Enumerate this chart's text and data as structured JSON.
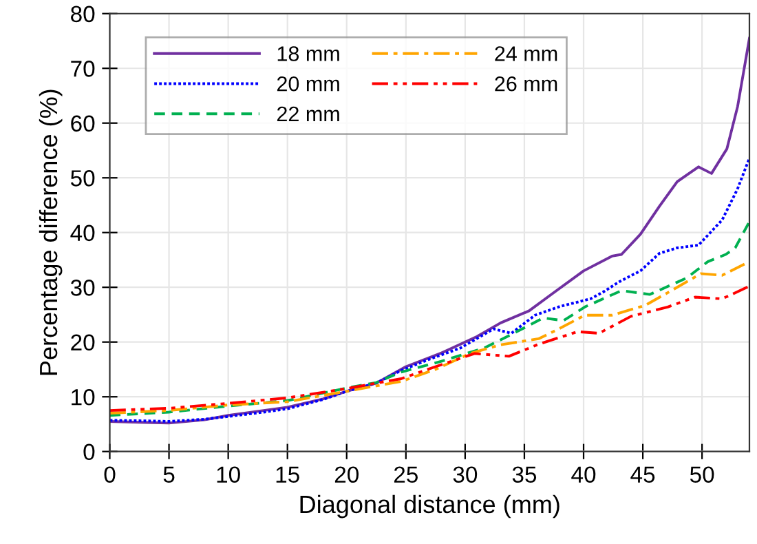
{
  "chart_data": {
    "type": "line",
    "xlabel": "Diagonal distance (mm)",
    "ylabel": "Percentage difference (%)",
    "xlim": [
      0,
      54
    ],
    "ylim": [
      0,
      80
    ],
    "xticks": [
      0,
      5,
      10,
      15,
      20,
      25,
      30,
      35,
      40,
      45,
      50
    ],
    "yticks": [
      0,
      10,
      20,
      30,
      40,
      50,
      60,
      70,
      80
    ],
    "grid": true,
    "legend": "top left",
    "series": [
      {
        "name": "18 mm",
        "color": "#7030a0",
        "line_style": "solid",
        "x": [
          0,
          3,
          5,
          8,
          10,
          13,
          15,
          18,
          20,
          22.5,
          25,
          28,
          31,
          33,
          35.4,
          37.4,
          40,
          42.4,
          43.2,
          44.8,
          46.4,
          47.9,
          49.7,
          50.8,
          52.1,
          53,
          54
        ],
        "values": [
          5.5,
          5.3,
          5.2,
          5.8,
          6.6,
          7.5,
          8.1,
          9.6,
          11,
          12.5,
          15.5,
          18,
          21,
          23.5,
          25.7,
          28.9,
          33,
          35.7,
          36,
          39.7,
          44.8,
          49.3,
          52,
          50.8,
          55.3,
          63,
          75.5
        ]
      },
      {
        "name": "20 mm",
        "color": "#0000ff",
        "line_style": "dotted",
        "x": [
          0,
          3,
          5,
          8,
          10,
          13,
          15,
          18,
          20,
          22.5,
          24.6,
          26.9,
          29.6,
          32.4,
          33.9,
          35.9,
          38,
          40.6,
          41.7,
          43,
          44.8,
          46.4,
          47.9,
          49.7,
          51.7,
          53,
          54
        ],
        "values": [
          5.7,
          5.6,
          5.5,
          5.9,
          6.4,
          7.2,
          7.8,
          9.5,
          11,
          12.5,
          14.8,
          16.8,
          18.9,
          22.4,
          21.6,
          24.9,
          26.5,
          27.9,
          29.2,
          31,
          33,
          36.2,
          37.2,
          37.7,
          42.3,
          48,
          53.6
        ]
      },
      {
        "name": "22 mm",
        "color": "#00b050",
        "line_style": "dashed",
        "x": [
          0,
          5,
          10,
          15,
          20,
          22.5,
          24.6,
          28,
          31.6,
          34,
          36.6,
          38.3,
          40.1,
          43.2,
          45.6,
          48.7,
          50.5,
          52,
          52.8,
          54
        ],
        "values": [
          6.6,
          7.2,
          8.3,
          9.3,
          11.6,
          12.6,
          14.5,
          16.5,
          18.9,
          21.5,
          24.4,
          23.9,
          26.4,
          29.4,
          28.7,
          31.7,
          34.7,
          36,
          37.2,
          42
        ]
      },
      {
        "name": "24 mm",
        "color": "#ffa500",
        "line_style": "dashdot",
        "x": [
          0,
          5,
          10,
          15,
          20,
          22.5,
          24.6,
          27.5,
          30.4,
          33,
          36.2,
          38,
          40.1,
          42.4,
          45.2,
          47.5,
          49.9,
          51.7,
          54
        ],
        "values": [
          7,
          7.5,
          8.5,
          9.1,
          11,
          12,
          12.8,
          15,
          17.9,
          19.5,
          20.6,
          22.5,
          24.9,
          24.9,
          26.7,
          29.5,
          32.5,
          32.2,
          34.7
        ]
      },
      {
        "name": "26 mm",
        "color": "#ff0000",
        "line_style": "dashdotdot",
        "x": [
          0,
          5,
          10,
          15,
          20,
          22.5,
          24.6,
          27.5,
          30.8,
          33.7,
          36.2,
          39.5,
          41.3,
          44,
          47.1,
          49.4,
          51.7,
          54
        ],
        "values": [
          7.5,
          7.9,
          8.8,
          9.8,
          11.5,
          12.5,
          13.3,
          15.5,
          17.9,
          17.4,
          19.6,
          21.9,
          21.6,
          24.7,
          26.4,
          28.2,
          27.9,
          30.2
        ]
      }
    ]
  }
}
